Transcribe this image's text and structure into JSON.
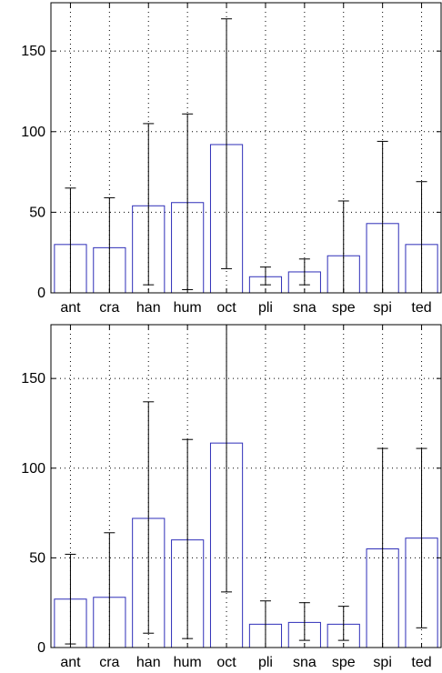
{
  "chart_data": [
    {
      "type": "bar",
      "categories": [
        "ant",
        "cra",
        "han",
        "hum",
        "oct",
        "pli",
        "sna",
        "spe",
        "spi",
        "ted"
      ],
      "values": [
        30,
        28,
        54,
        56,
        92,
        10,
        13,
        23,
        43,
        30
      ],
      "error_low": [
        0,
        0,
        5,
        2,
        15,
        5,
        5,
        0,
        0,
        0
      ],
      "error_high": [
        65,
        59,
        105,
        111,
        170,
        16,
        21,
        57,
        94,
        69
      ],
      "ylim": [
        0,
        180
      ],
      "yticks": [
        0,
        50,
        100,
        150
      ],
      "grid": true,
      "bar_color": "#2e2eb8",
      "error_color": "#000000"
    },
    {
      "type": "bar",
      "categories": [
        "ant",
        "cra",
        "han",
        "hum",
        "oct",
        "pli",
        "sna",
        "spe",
        "spi",
        "ted"
      ],
      "values": [
        27,
        28,
        72,
        60,
        114,
        13,
        14,
        13,
        55,
        61
      ],
      "error_low": [
        2,
        0,
        8,
        5,
        31,
        0,
        4,
        4,
        0,
        11
      ],
      "error_high": [
        52,
        64,
        137,
        116,
        180,
        26,
        25,
        23,
        111,
        111
      ],
      "ylim": [
        0,
        180
      ],
      "yticks": [
        0,
        50,
        100,
        150
      ],
      "grid": true,
      "bar_color": "#2e2eb8",
      "error_color": "#000000"
    }
  ]
}
